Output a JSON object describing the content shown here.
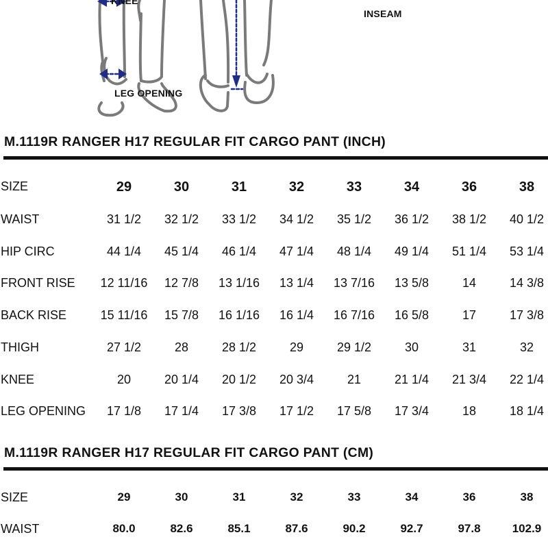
{
  "illustration": {
    "labels": {
      "knee": "KNEE",
      "leg_opening": "LEG OPENING",
      "inseam": "INSEAM"
    },
    "arrow_color": "#1f2d86",
    "outline_color": "#7a7a7a"
  },
  "inch_table": {
    "title": "M.1119R RANGER H17 REGULAR FIT CARGO PANT (INCH)",
    "rows": [
      {
        "label": "SIZE",
        "values": [
          "29",
          "30",
          "31",
          "32",
          "33",
          "34",
          "36",
          "38"
        ]
      },
      {
        "label": "WAIST",
        "values": [
          "31 1/2",
          "32 1/2",
          "33 1/2",
          "34 1/2",
          "35 1/2",
          "36 1/2",
          "38 1/2",
          "40 1/2"
        ]
      },
      {
        "label": "HIP CIRC",
        "values": [
          "44 1/4",
          "45 1/4",
          "46 1/4",
          "47 1/4",
          "48 1/4",
          "49 1/4",
          "51 1/4",
          "53 1/4"
        ]
      },
      {
        "label": "FRONT RISE",
        "values": [
          "12 11/16",
          "12 7/8",
          "13 1/16",
          "13 1/4",
          "13 7/16",
          "13 5/8",
          "14",
          "14 3/8"
        ]
      },
      {
        "label": "BACK RISE",
        "values": [
          "15 11/16",
          "15 7/8",
          "16 1/16",
          "16 1/4",
          "16 7/16",
          "16 5/8",
          "17",
          "17 3/8"
        ]
      },
      {
        "label": "THIGH",
        "values": [
          "27 1/2",
          "28",
          "28 1/2",
          "29",
          "29 1/2",
          "30",
          "31",
          "32"
        ]
      },
      {
        "label": "KNEE",
        "values": [
          "20",
          "20 1/4",
          "20 1/2",
          "20 3/4",
          "21",
          "21 1/4",
          "21 3/4",
          "22 1/4"
        ]
      },
      {
        "label": "LEG OPENING",
        "values": [
          "17 1/8",
          "17 1/4",
          "17 3/8",
          "17 1/2",
          "17 5/8",
          "17 3/4",
          "18",
          "18 1/4"
        ]
      }
    ]
  },
  "cm_table": {
    "title": "M.1119R RANGER H17 REGULAR FIT CARGO PANT (CM)",
    "rows": [
      {
        "label": "SIZE",
        "values": [
          "29",
          "30",
          "31",
          "32",
          "33",
          "34",
          "36",
          "38"
        ]
      },
      {
        "label": "WAIST",
        "values": [
          "80.0",
          "82.6",
          "85.1",
          "87.6",
          "90.2",
          "92.7",
          "97.8",
          "102.9"
        ]
      }
    ]
  }
}
